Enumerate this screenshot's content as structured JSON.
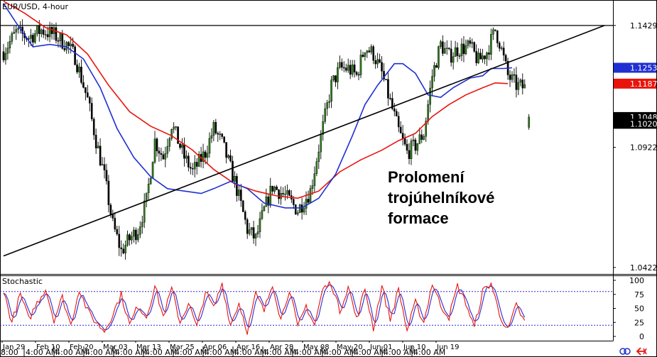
{
  "window": {
    "symbol_title": "EUR/USD, 4-hour",
    "indicator_title": "Stochastic"
  },
  "annotation": {
    "lines": [
      "Prolomení",
      "trojúhelníkové",
      "formace"
    ]
  },
  "colors": {
    "bull_candle": "#2e7d1a",
    "bear_candle": "#000000",
    "ma_fast": "#1f2fd2",
    "ma_slow": "#e8140c",
    "stoch_main": "#e8140c",
    "stoch_signal": "#2a2ad0",
    "level_line": "#2a2ad0",
    "trendline": "#000000",
    "grid_border": "#000000"
  },
  "icons": [
    "link-icon",
    "close-arrow-icon"
  ],
  "chart_data": [
    {
      "type": "line",
      "title": "EUR/USD, 4-hour",
      "ylim": [
        1.0395,
        1.1535
      ],
      "price_labels": [
        "1.1429",
        "1.1253",
        "1.1187",
        "1.1048",
        "1.1020",
        "1.0922",
        "1.0422"
      ],
      "price_label_values": [
        1.1429,
        1.1253,
        1.1187,
        1.1048,
        1.102,
        1.0922,
        1.0422
      ],
      "price_label_styles": [
        "white",
        "blue",
        "red",
        "black",
        "black",
        "white",
        "white"
      ],
      "horizontal_resistance": 1.1429,
      "trendline": {
        "from": {
          "idx": 0,
          "y": 1.047
        },
        "to": {
          "idx": 212,
          "y": 1.1429
        }
      },
      "series": [
        {
          "kind": "candles",
          "anchors_close": [
            [
              0,
              1.132
            ],
            [
              6,
              1.14
            ],
            [
              12,
              1.138
            ],
            [
              18,
              1.141
            ],
            [
              24,
              1.139
            ],
            [
              30,
              1.135
            ],
            [
              34,
              1.13
            ],
            [
              40,
              1.112
            ],
            [
              44,
              1.095
            ],
            [
              48,
              1.08
            ],
            [
              52,
              1.06
            ],
            [
              56,
              1.049
            ],
            [
              60,
              1.054
            ],
            [
              64,
              1.058
            ],
            [
              68,
              1.07
            ],
            [
              72,
              1.095
            ],
            [
              76,
              1.088
            ],
            [
              80,
              1.102
            ],
            [
              86,
              1.088
            ],
            [
              90,
              1.082
            ],
            [
              96,
              1.09
            ],
            [
              100,
              1.1
            ],
            [
              104,
              1.094
            ],
            [
              110,
              1.078
            ],
            [
              116,
              1.058
            ],
            [
              120,
              1.054
            ],
            [
              124,
              1.066
            ],
            [
              128,
              1.076
            ],
            [
              134,
              1.072
            ],
            [
              140,
              1.066
            ],
            [
              146,
              1.074
            ],
            [
              150,
              1.092
            ],
            [
              156,
              1.118
            ],
            [
              160,
              1.125
            ],
            [
              164,
              1.125
            ],
            [
              168,
              1.122
            ],
            [
              172,
              1.134
            ],
            [
              176,
              1.131
            ],
            [
              180,
              1.123
            ],
            [
              184,
              1.111
            ],
            [
              188,
              1.099
            ],
            [
              192,
              1.09
            ],
            [
              196,
              1.093
            ],
            [
              200,
              1.098
            ],
            [
              204,
              1.122
            ],
            [
              208,
              1.135
            ],
            [
              212,
              1.13
            ],
            [
              216,
              1.133
            ],
            [
              222,
              1.134
            ],
            [
              226,
              1.128
            ],
            [
              230,
              1.132
            ],
            [
              234,
              1.141
            ],
            [
              236,
              1.136
            ],
            [
              240,
              1.122
            ],
            [
              244,
              1.118
            ],
            [
              248,
              1.117
            ]
          ],
          "gap_candle": {
            "idx": 250,
            "open": 1.1005,
            "close": 1.1048,
            "high": 1.106,
            "low": 1.0995
          }
        },
        {
          "name": "",
          "kind": "ma",
          "color_key": "ma_fast",
          "points": [
            [
              0,
              1.152
            ],
            [
              6,
              1.144
            ],
            [
              14,
              1.134
            ],
            [
              22,
              1.135
            ],
            [
              30,
              1.134
            ],
            [
              38,
              1.129
            ],
            [
              46,
              1.117
            ],
            [
              54,
              1.1
            ],
            [
              62,
              1.088
            ],
            [
              70,
              1.08
            ],
            [
              78,
              1.075
            ],
            [
              86,
              1.074
            ],
            [
              94,
              1.073
            ],
            [
              100,
              1.075
            ],
            [
              108,
              1.078
            ],
            [
              116,
              1.075
            ],
            [
              124,
              1.069
            ],
            [
              134,
              1.067
            ],
            [
              142,
              1.067
            ],
            [
              150,
              1.071
            ],
            [
              158,
              1.081
            ],
            [
              166,
              1.097
            ],
            [
              172,
              1.11
            ],
            [
              178,
              1.118
            ],
            [
              186,
              1.127
            ],
            [
              190,
              1.127
            ],
            [
              196,
              1.123
            ],
            [
              202,
              1.114
            ],
            [
              208,
              1.113
            ],
            [
              214,
              1.117
            ],
            [
              222,
              1.121
            ],
            [
              228,
              1.122
            ],
            [
              232,
              1.125
            ],
            [
              238,
              1.125
            ],
            [
              242,
              1.1253
            ]
          ]
        },
        {
          "name": "",
          "kind": "ma",
          "color_key": "ma_slow",
          "points": [
            [
              0,
              1.153
            ],
            [
              10,
              1.148
            ],
            [
              20,
              1.142
            ],
            [
              30,
              1.139
            ],
            [
              40,
              1.131
            ],
            [
              50,
              1.118
            ],
            [
              60,
              1.107
            ],
            [
              70,
              1.101
            ],
            [
              80,
              1.097
            ],
            [
              90,
              1.091
            ],
            [
              100,
              1.083
            ],
            [
              110,
              1.077
            ],
            [
              120,
              1.074
            ],
            [
              130,
              1.072
            ],
            [
              140,
              1.071
            ],
            [
              150,
              1.074
            ],
            [
              160,
              1.082
            ],
            [
              170,
              1.087
            ],
            [
              180,
              1.091
            ],
            [
              188,
              1.095
            ],
            [
              196,
              1.098
            ],
            [
              204,
              1.105
            ],
            [
              212,
              1.11
            ],
            [
              220,
              1.114
            ],
            [
              228,
              1.117
            ],
            [
              234,
              1.119
            ],
            [
              240,
              1.1187
            ]
          ]
        }
      ]
    },
    {
      "type": "line",
      "title": "Stochastic",
      "ylim": [
        0,
        100
      ],
      "yticks": [
        0,
        25,
        50,
        75,
        100
      ],
      "levels": [
        20,
        80
      ],
      "x_tick_labels": [
        "Jan 29",
        "Feb 10",
        "Feb 20",
        "Mar 03",
        "Mar 13",
        "Mar 25",
        "Apr 06",
        "Apr 16",
        "Apr 28",
        "May 08",
        "May 20",
        "Jun 01",
        "Jun 10",
        "Jun 19"
      ],
      "bottom_time_labels": [
        "8:00",
        "4:00 AM",
        "4:00 AM",
        "4:00 AM",
        "4:00 AM",
        "4:00 AM",
        "4:00 AM",
        "4:00 AM",
        "4:00 AM",
        "4:00 AM",
        "4:00 AM",
        "4:00 AM",
        "4:00 AM",
        "4:00 AM",
        "4:00 AM"
      ],
      "series": [
        {
          "name": "",
          "color_key": "stoch_main",
          "anchors": [
            [
              0,
              80
            ],
            [
              4,
              25
            ],
            [
              8,
              75
            ],
            [
              12,
              30
            ],
            [
              16,
              60
            ],
            [
              20,
              85
            ],
            [
              24,
              30
            ],
            [
              28,
              70
            ],
            [
              32,
              20
            ],
            [
              36,
              85
            ],
            [
              40,
              45
            ],
            [
              44,
              25
            ],
            [
              48,
              10
            ],
            [
              52,
              40
            ],
            [
              56,
              75
            ],
            [
              60,
              20
            ],
            [
              64,
              55
            ],
            [
              68,
              35
            ],
            [
              72,
              90
            ],
            [
              76,
              35
            ],
            [
              80,
              85
            ],
            [
              84,
              25
            ],
            [
              88,
              60
            ],
            [
              92,
              15
            ],
            [
              96,
              80
            ],
            [
              100,
              50
            ],
            [
              104,
              95
            ],
            [
              108,
              20
            ],
            [
              112,
              60
            ],
            [
              116,
              10
            ],
            [
              120,
              75
            ],
            [
              124,
              45
            ],
            [
              128,
              95
            ],
            [
              132,
              30
            ],
            [
              136,
              85
            ],
            [
              140,
              15
            ],
            [
              144,
              55
            ],
            [
              148,
              20
            ],
            [
              152,
              85
            ],
            [
              156,
              95
            ],
            [
              160,
              45
            ],
            [
              164,
              90
            ],
            [
              168,
              30
            ],
            [
              172,
              85
            ],
            [
              176,
              15
            ],
            [
              180,
              90
            ],
            [
              184,
              30
            ],
            [
              188,
              85
            ],
            [
              192,
              10
            ],
            [
              196,
              60
            ],
            [
              200,
              25
            ],
            [
              204,
              95
            ],
            [
              208,
              55
            ],
            [
              212,
              35
            ],
            [
              216,
              90
            ],
            [
              220,
              60
            ],
            [
              224,
              15
            ],
            [
              228,
              80
            ],
            [
              232,
              95
            ],
            [
              236,
              40
            ],
            [
              240,
              10
            ],
            [
              244,
              55
            ],
            [
              248,
              25
            ]
          ]
        },
        {
          "name": "",
          "color_key": "stoch_signal",
          "lag": 1
        }
      ]
    }
  ]
}
